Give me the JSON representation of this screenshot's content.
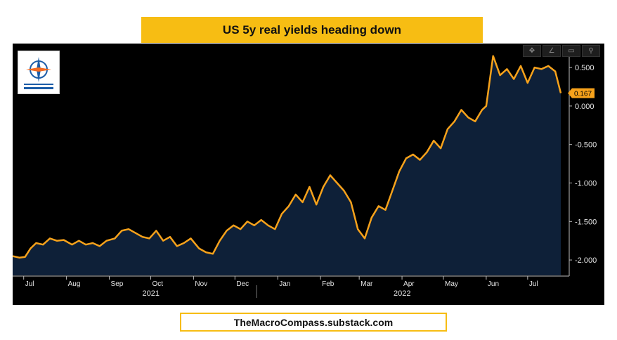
{
  "title": "US 5y real yields heading down",
  "footer": "TheMacroCompass.substack.com",
  "colors": {
    "title_bg": "#f7bd13",
    "line": "#f7a21b",
    "fill": "#0e2038",
    "background": "#000000"
  },
  "toolbar_icons": [
    "crosshair-icon",
    "draw-icon",
    "rectangle-icon",
    "zoom-icon"
  ],
  "chart_data": {
    "type": "area",
    "ylim": [
      -2.2,
      0.72
    ],
    "yticks": [
      0.5,
      0.0,
      -0.5,
      -1.0,
      -1.5,
      -2.0
    ],
    "ytick_labels": [
      "0.500",
      "0.000",
      "-0.500",
      "-1.000",
      "-1.500",
      "-2.000"
    ],
    "last_value": 0.167,
    "last_value_label": "0.167",
    "month_labels": [
      "Jul",
      "Aug",
      "Sep",
      "Oct",
      "Nov",
      "Dec",
      "Jan",
      "Feb",
      "Mar",
      "Apr",
      "May",
      "Jun",
      "Jul"
    ],
    "month_dates": [
      "2021-07-01",
      "2021-08-01",
      "2021-09-01",
      "2021-10-01",
      "2021-11-01",
      "2021-12-01",
      "2022-01-01",
      "2022-02-01",
      "2022-03-01",
      "2022-04-01",
      "2022-05-01",
      "2022-06-01",
      "2022-07-01"
    ],
    "year_labels": [
      {
        "label": "2021",
        "date": "2021-10-01"
      },
      {
        "label": "2022",
        "date": "2022-04-01"
      }
    ],
    "x_range": [
      "2021-06-23",
      "2022-07-25"
    ],
    "series": [
      {
        "x": [
          "2021-06-23",
          "2021-06-28",
          "2021-07-02",
          "2021-07-06",
          "2021-07-10",
          "2021-07-15",
          "2021-07-20",
          "2021-07-25",
          "2021-07-30",
          "2021-08-05",
          "2021-08-10",
          "2021-08-15",
          "2021-08-20",
          "2021-08-25",
          "2021-08-30",
          "2021-09-05",
          "2021-09-10",
          "2021-09-15",
          "2021-09-20",
          "2021-09-25",
          "2021-09-30",
          "2021-10-05",
          "2021-10-10",
          "2021-10-15",
          "2021-10-20",
          "2021-10-25",
          "2021-10-30",
          "2021-11-05",
          "2021-11-10",
          "2021-11-15",
          "2021-11-20",
          "2021-11-25",
          "2021-11-30",
          "2021-12-05",
          "2021-12-10",
          "2021-12-15",
          "2021-12-20",
          "2021-12-25",
          "2021-12-30",
          "2022-01-04",
          "2022-01-09",
          "2022-01-14",
          "2022-01-19",
          "2022-01-24",
          "2022-01-29",
          "2022-02-03",
          "2022-02-08",
          "2022-02-13",
          "2022-02-18",
          "2022-02-23",
          "2022-02-28",
          "2022-03-05",
          "2022-03-10",
          "2022-03-15",
          "2022-03-20",
          "2022-03-25",
          "2022-03-30",
          "2022-04-04",
          "2022-04-09",
          "2022-04-14",
          "2022-04-19",
          "2022-04-24",
          "2022-04-29",
          "2022-05-04",
          "2022-05-09",
          "2022-05-14",
          "2022-05-19",
          "2022-05-24",
          "2022-05-29",
          "2022-06-01",
          "2022-06-06",
          "2022-06-11",
          "2022-06-16",
          "2022-06-21",
          "2022-06-26",
          "2022-07-01",
          "2022-07-06",
          "2022-07-11",
          "2022-07-16",
          "2022-07-21",
          "2022-07-25"
        ],
        "values": [
          -1.95,
          -1.97,
          -1.96,
          -1.85,
          -1.78,
          -1.8,
          -1.72,
          -1.75,
          -1.74,
          -1.8,
          -1.75,
          -1.8,
          -1.78,
          -1.82,
          -1.75,
          -1.72,
          -1.62,
          -1.6,
          -1.65,
          -1.7,
          -1.72,
          -1.62,
          -1.75,
          -1.7,
          -1.82,
          -1.78,
          -1.72,
          -1.85,
          -1.9,
          -1.92,
          -1.75,
          -1.62,
          -1.55,
          -1.6,
          -1.5,
          -1.55,
          -1.48,
          -1.55,
          -1.6,
          -1.4,
          -1.3,
          -1.15,
          -1.25,
          -1.05,
          -1.28,
          -1.05,
          -0.9,
          -1.0,
          -1.1,
          -1.25,
          -1.6,
          -1.72,
          -1.45,
          -1.3,
          -1.35,
          -1.1,
          -0.85,
          -0.68,
          -0.63,
          -0.7,
          -0.6,
          -0.45,
          -0.55,
          -0.3,
          -0.2,
          -0.05,
          -0.15,
          -0.2,
          -0.05,
          0.0,
          0.65,
          0.4,
          0.48,
          0.35,
          0.52,
          0.3,
          0.5,
          0.48,
          0.52,
          0.45,
          0.167
        ]
      }
    ]
  }
}
